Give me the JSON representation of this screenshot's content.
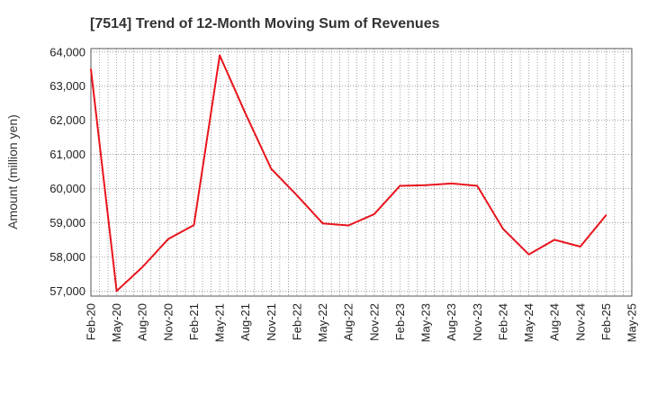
{
  "chart_data": {
    "type": "line",
    "title": "[7514]  Trend of 12-Month Moving Sum of Revenues",
    "ylabel": "Amount (million yen)",
    "xlabel": "",
    "ylim": [
      56850,
      64100
    ],
    "yticks": [
      57000,
      58000,
      59000,
      60000,
      61000,
      62000,
      63000,
      64000
    ],
    "ytick_labels": [
      "57,000",
      "58,000",
      "59,000",
      "60,000",
      "61,000",
      "62,000",
      "63,000",
      "64,000"
    ],
    "xtick_labels": [
      "Feb-20",
      "May-20",
      "Aug-20",
      "Nov-20",
      "Feb-21",
      "May-21",
      "Aug-21",
      "Nov-21",
      "Feb-22",
      "May-22",
      "Aug-22",
      "Nov-22",
      "Feb-23",
      "May-23",
      "Aug-23",
      "Nov-23",
      "Feb-24",
      "May-24",
      "Aug-24",
      "Nov-24",
      "Feb-25",
      "May-25"
    ],
    "grid": true,
    "line_color": "#e8141c",
    "series": [
      {
        "values": [
          63500,
          57000,
          57700,
          58520,
          58930,
          63900,
          62200,
          60580,
          59800,
          58980,
          58920,
          59250,
          60080,
          60100,
          60150,
          60080,
          58820,
          58070,
          58500,
          58300,
          59220
        ]
      }
    ]
  }
}
